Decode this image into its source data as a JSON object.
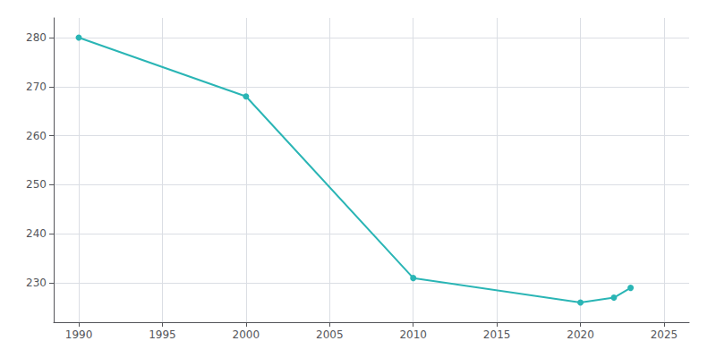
{
  "chart_data": {
    "type": "line",
    "x": [
      1990,
      2000,
      2010,
      2020,
      2022,
      2023
    ],
    "values": [
      280,
      268,
      231,
      226,
      227,
      229
    ],
    "color": "#2ab5b5",
    "marker": "circle",
    "xlim": [
      1988.5,
      2026.5
    ],
    "xticks": [
      1990,
      1995,
      2000,
      2005,
      2010,
      2015,
      2020,
      2025
    ],
    "ylim": [
      222,
      284
    ],
    "yticks": [
      230,
      240,
      250,
      260,
      270,
      280
    ],
    "grid": true
  }
}
